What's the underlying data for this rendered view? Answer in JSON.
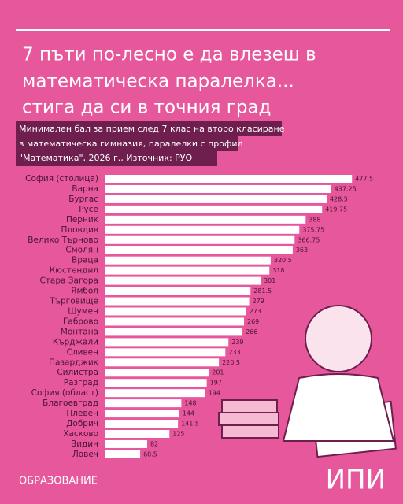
{
  "chart_data": {
    "type": "bar",
    "orientation": "horizontal",
    "title": [
      "7 пъти по-лесно е да влезеш в",
      "математическа паралелка...",
      "стига да си в точния град"
    ],
    "subtitle": [
      "Минимален бал за прием след 7 клас на второ класиране",
      "в математическа гимназия, паралелки с профил",
      "\"Математика\", 2026 г., Източник: РУО"
    ],
    "categories": [
      "София (столица)",
      "Варна",
      "Бургас",
      "Русе",
      "Перник",
      "Пловдив",
      "Велико Търново",
      "Смолян",
      "Враца",
      "Кюстендил",
      "Стара Загора",
      "Ямбол",
      "Търговище",
      "Шумен",
      "Габрово",
      "Монтана",
      "Кърджали",
      "Сливен",
      "Пазарджик",
      "Силистра",
      "Разград",
      "София (област)",
      "Благоевград",
      "Плевен",
      "Добрич",
      "Хасково",
      "Видин",
      "Ловеч"
    ],
    "values": [
      477.5,
      437.25,
      428.5,
      419.75,
      388,
      375.75,
      366.75,
      363,
      320.5,
      318,
      301,
      281.5,
      279,
      273,
      269,
      266,
      239,
      233,
      220.5,
      201,
      197,
      194,
      148,
      144,
      141.5,
      125,
      82,
      68.5
    ],
    "color": "#ffffff"
  },
  "footer": {
    "section": "ОБРАЗОВАНИЕ",
    "logo": "ИПИ"
  }
}
